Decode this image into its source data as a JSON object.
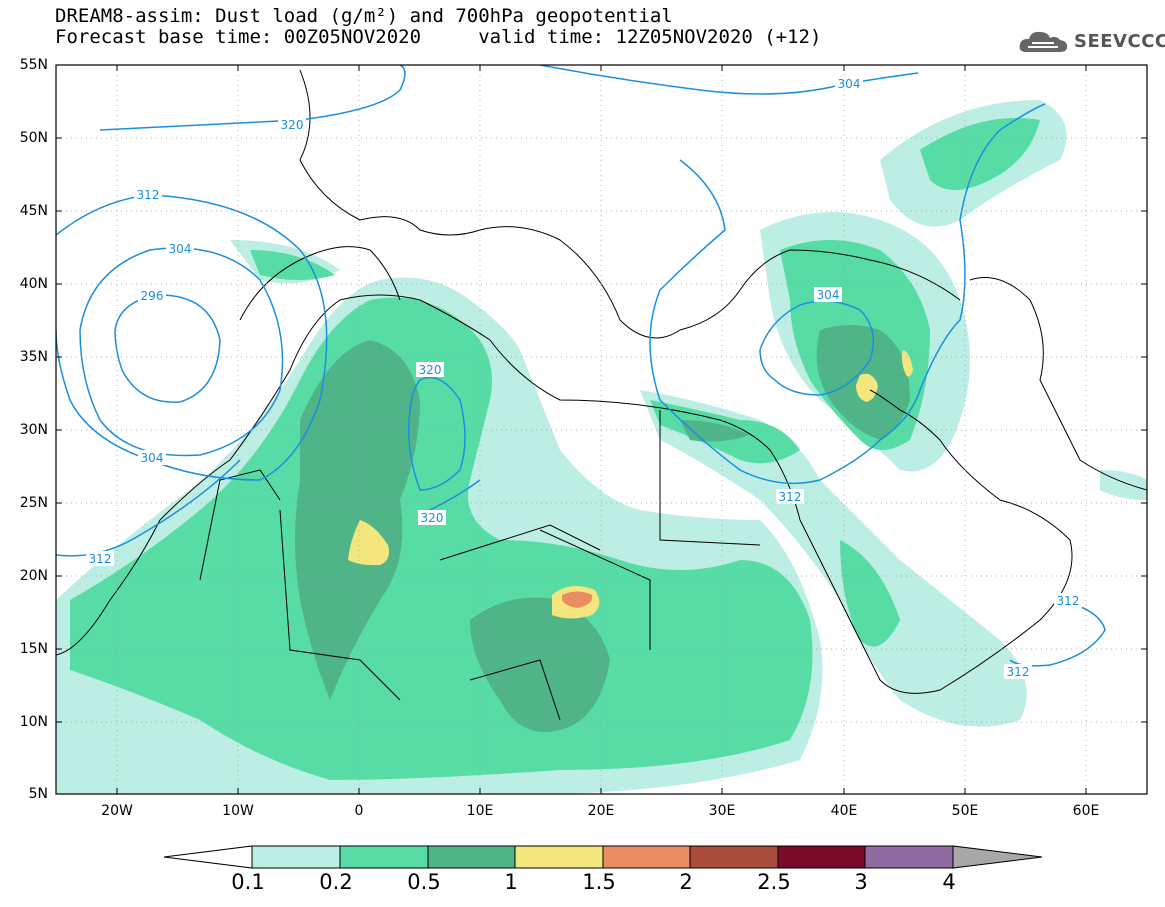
{
  "header": {
    "title_line1": "DREAM8-assim: Dust load (g/m²) and 700hPa geopotential",
    "title_line2": "Forecast base time: 00Z05NOV2020     valid time: 12Z05NOV2020 (+12)"
  },
  "logo": {
    "icon": "cloud-logo-icon",
    "text": "SEEVCCC"
  },
  "map": {
    "lat_labels": [
      "55N",
      "50N",
      "45N",
      "40N",
      "35N",
      "30N",
      "25N",
      "20N",
      "15N",
      "10N",
      "5N"
    ],
    "lon_labels": [
      "20W",
      "10W",
      "0",
      "10E",
      "20E",
      "30E",
      "40E",
      "50E",
      "60E"
    ],
    "extent": {
      "lon_min": -25,
      "lon_max": 65,
      "lat_min": 5,
      "lat_max": 55
    },
    "contour_labels": [
      "304",
      "320",
      "312",
      "304",
      "296",
      "320",
      "304",
      "320",
      "312",
      "304",
      "312",
      "312",
      "312"
    ],
    "contour_color": "#1a8fe0"
  },
  "colorbar": {
    "labels": [
      "0.1",
      "0.2",
      "0.5",
      "1",
      "1.5",
      "2",
      "2.5",
      "3",
      "4"
    ],
    "colors": [
      "#bdeee3",
      "#58dca6",
      "#4fb488",
      "#f3e67c",
      "#e98c62",
      "#a94c3c",
      "#7a0b2a",
      "#8e6aa0"
    ],
    "under_color": "#ffffff",
    "over_color": "#a8a8a8"
  }
}
